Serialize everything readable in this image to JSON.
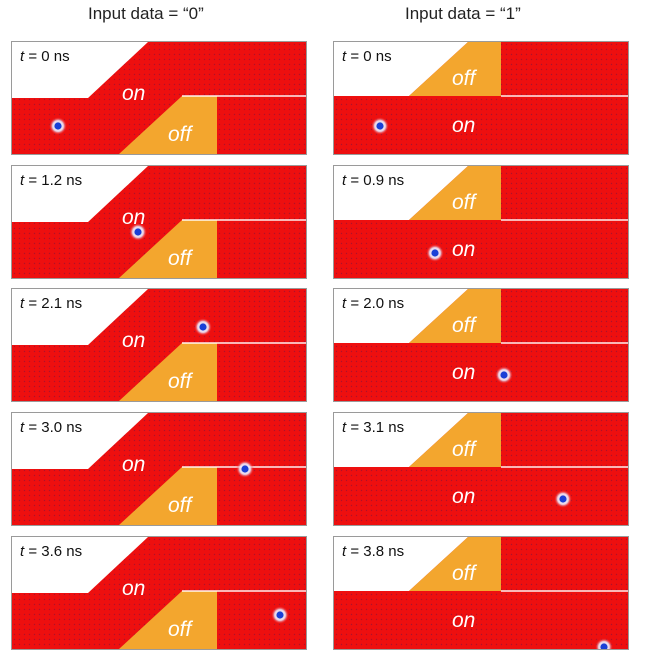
{
  "columns": [
    {
      "title": "Input data = “0”",
      "layout": "zero",
      "panels": [
        {
          "t": "0 ns"
        },
        {
          "t": "1.2 ns"
        },
        {
          "t": "2.1 ns"
        },
        {
          "t": "3.0 ns"
        },
        {
          "t": "3.6 ns"
        }
      ]
    },
    {
      "title": "Input data = “1”",
      "layout": "one",
      "panels": [
        {
          "t": "0 ns"
        },
        {
          "t": "0.9 ns"
        },
        {
          "t": "2.0 ns"
        },
        {
          "t": "3.1 ns"
        },
        {
          "t": "3.8 ns"
        }
      ]
    }
  ],
  "labels": {
    "t_symbol": "t",
    "equals": " = ",
    "on": "on",
    "off": "off"
  },
  "colors": {
    "red": "#ee0f0f",
    "off": "#f3a62e",
    "dot": "#1a3fd6",
    "border": "#9a9a9a"
  }
}
